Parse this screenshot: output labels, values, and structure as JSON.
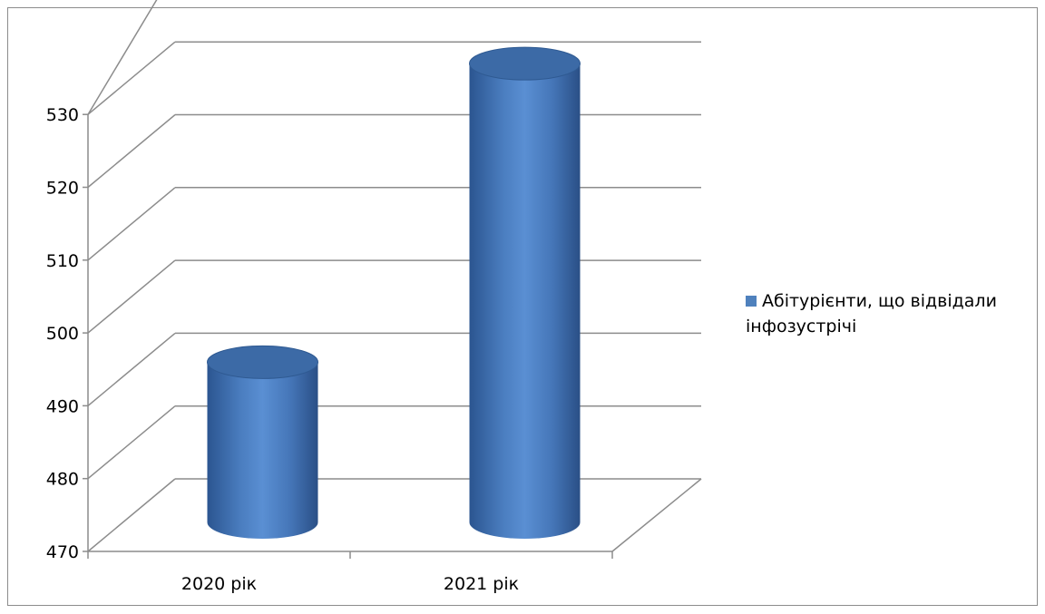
{
  "chart_data": {
    "type": "bar",
    "style": "3d-cylinder",
    "title": "",
    "xlabel": "",
    "ylabel": "",
    "categories": [
      "2020 рік",
      "2021 рік"
    ],
    "series": [
      {
        "name": "Абітурієнти, що відвідали інфозустрічі",
        "values": [
          491,
          532
        ]
      }
    ],
    "ylim": [
      470,
      530
    ],
    "yticks": [
      "470",
      "480",
      "490",
      "500",
      "510",
      "520",
      "530"
    ],
    "grid": true,
    "legend_position": "right",
    "colors": {
      "series": "#4f81bd",
      "series_dark": "#2f5a92",
      "series_top": "#3c6aa6",
      "grid": "#8c8c8c"
    }
  }
}
